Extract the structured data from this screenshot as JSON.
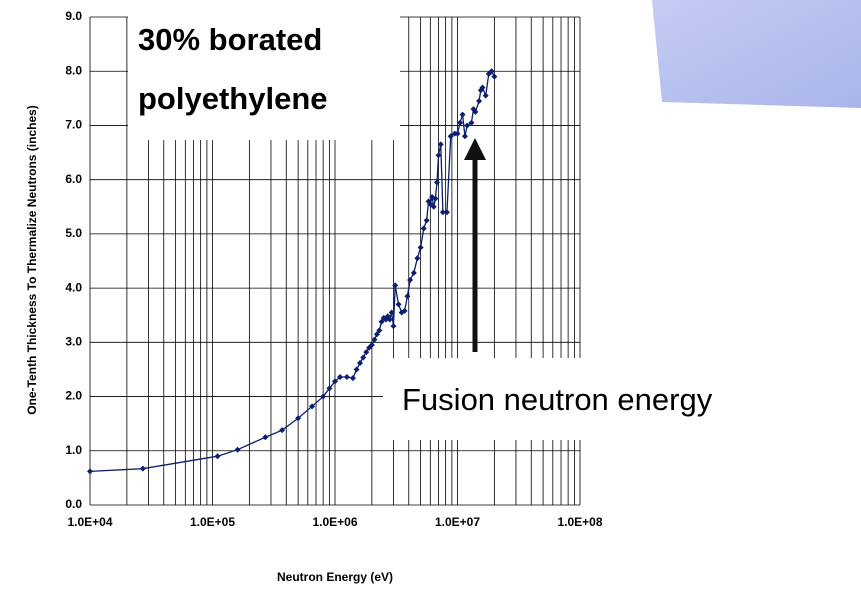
{
  "chart_data": {
    "type": "line",
    "xlabel": "Neutron Energy (eV)",
    "ylabel": "One-Tenth Thickness To Thermalize Neutrons (inches)",
    "annotations": [
      "30% borated",
      "polyethylene",
      "Fusion neutron energy"
    ],
    "xscale": "log",
    "xlim": [
      10000,
      100000000
    ],
    "xticks": [
      {
        "value": 10000,
        "label": "1.0E+04"
      },
      {
        "value": 100000,
        "label": "1.0E+05"
      },
      {
        "value": 1000000,
        "label": "1.0E+06"
      },
      {
        "value": 10000000,
        "label": "1.0E+07"
      },
      {
        "value": 100000000,
        "label": "1.0E+08"
      }
    ],
    "ylim": [
      0,
      9
    ],
    "yticks": [
      {
        "value": 0,
        "label": "0.0"
      },
      {
        "value": 1,
        "label": "1.0"
      },
      {
        "value": 2,
        "label": "2.0"
      },
      {
        "value": 3,
        "label": "3.0"
      },
      {
        "value": 4,
        "label": "4.0"
      },
      {
        "value": 5,
        "label": "5.0"
      },
      {
        "value": 6,
        "label": "6.0"
      },
      {
        "value": 7,
        "label": "7.0"
      },
      {
        "value": 8,
        "label": "8.0"
      },
      {
        "value": 9,
        "label": "9.0"
      }
    ],
    "grid": true,
    "minor_grid": true,
    "x": [
      10000,
      27000,
      110000,
      160000,
      270000,
      370000,
      500000,
      650000,
      800000,
      900000,
      1000000,
      1100000,
      1250000,
      1400000,
      1500000,
      1600000,
      1700000,
      1800000,
      1900000,
      2000000,
      2100000,
      2200000,
      2300000,
      2400000,
      2500000,
      2600000,
      2700000,
      2800000,
      2900000,
      3000000,
      3100000,
      3300000,
      3500000,
      3700000,
      3900000,
      4100000,
      4400000,
      4700000,
      5000000,
      5300000,
      5600000,
      5800000,
      6000000,
      6200000,
      6400000,
      6600000,
      6800000,
      7000000,
      7300000,
      7600000,
      8200000,
      8800000,
      9500000,
      10000000,
      10500000,
      11000000,
      11500000,
      12000000,
      13000000,
      13500000,
      14000000,
      15000000,
      15500000,
      16000000,
      17000000,
      18000000,
      19000000,
      20000000
    ],
    "series": [
      {
        "name": "30% borated polyethylene",
        "color": "#0a1f6e",
        "values": [
          0.62,
          0.67,
          0.9,
          1.02,
          1.25,
          1.38,
          1.6,
          1.82,
          2.0,
          2.15,
          2.28,
          2.36,
          2.36,
          2.34,
          2.5,
          2.62,
          2.72,
          2.82,
          2.9,
          2.95,
          3.05,
          3.15,
          3.22,
          3.38,
          3.45,
          3.42,
          3.48,
          3.42,
          3.55,
          3.3,
          4.05,
          3.7,
          3.55,
          3.58,
          3.85,
          4.15,
          4.28,
          4.55,
          4.75,
          5.1,
          5.25,
          5.6,
          5.55,
          5.68,
          5.5,
          5.65,
          5.95,
          6.45,
          6.65,
          5.4,
          5.4,
          6.8,
          6.85,
          6.85,
          7.05,
          7.2,
          6.8,
          7.0,
          7.05,
          7.3,
          7.25,
          7.45,
          7.65,
          7.7,
          7.55,
          7.95,
          8.0,
          7.9
        ]
      }
    ]
  }
}
